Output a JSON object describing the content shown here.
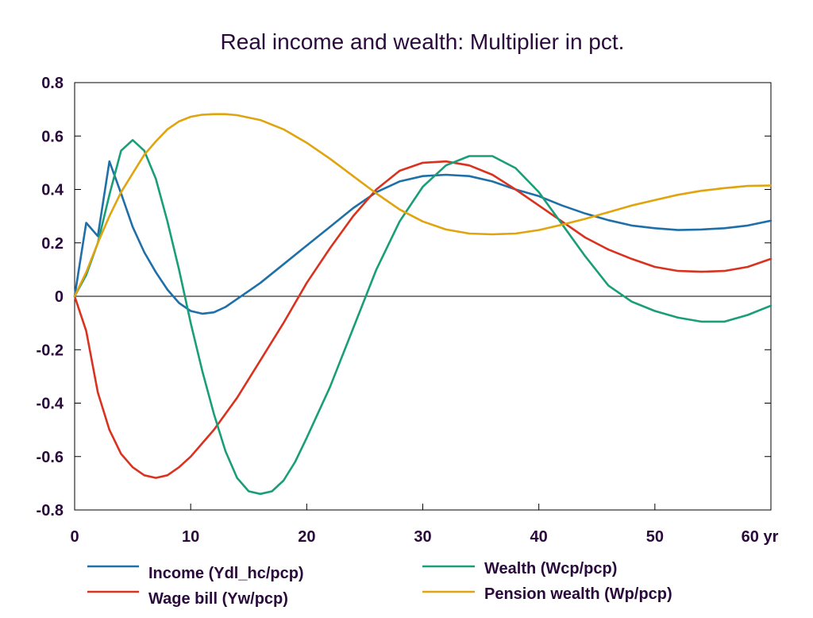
{
  "chart_data": {
    "type": "line",
    "title": "Real income and wealth: Multiplier in pct.",
    "x_unit_label": "yr",
    "xlim": [
      0,
      60
    ],
    "ylim": [
      -0.8,
      0.8
    ],
    "x_ticks": [
      0,
      10,
      20,
      30,
      40,
      50,
      60
    ],
    "x_tick_labels": [
      "0",
      "10",
      "20",
      "30",
      "40",
      "50",
      "60 yr"
    ],
    "y_ticks": [
      -0.8,
      -0.6,
      -0.4,
      -0.2,
      0,
      0.2,
      0.4,
      0.6,
      0.8
    ],
    "y_tick_labels": [
      "-0.8",
      "-0.6",
      "-0.4",
      "-0.2",
      "0",
      "0.2",
      "0.4",
      "0.6",
      "0.8"
    ],
    "zero_line": true,
    "grid": false,
    "legend_position": "bottom",
    "series": [
      {
        "name": "Income (Ydl_hc/pcp)",
        "color": "#1f6fa8",
        "x": [
          0,
          1,
          2,
          3,
          4,
          5,
          6,
          7,
          8,
          9,
          10,
          11,
          12,
          13,
          14,
          15,
          16,
          18,
          20,
          22,
          24,
          26,
          28,
          30,
          32,
          34,
          36,
          38,
          40,
          42,
          44,
          46,
          48,
          50,
          52,
          54,
          56,
          58,
          60
        ],
        "y": [
          0,
          0.275,
          0.225,
          0.505,
          0.385,
          0.26,
          0.165,
          0.09,
          0.025,
          -0.025,
          -0.055,
          -0.065,
          -0.06,
          -0.04,
          -0.01,
          0.02,
          0.05,
          0.12,
          0.19,
          0.26,
          0.33,
          0.39,
          0.43,
          0.45,
          0.455,
          0.45,
          0.43,
          0.4,
          0.375,
          0.34,
          0.31,
          0.285,
          0.265,
          0.255,
          0.248,
          0.25,
          0.255,
          0.265,
          0.283
        ]
      },
      {
        "name": "Wage bill (Yw/pcp)",
        "color": "#d9321f",
        "x": [
          0,
          1,
          2,
          3,
          4,
          5,
          6,
          7,
          8,
          9,
          10,
          12,
          14,
          16,
          18,
          20,
          22,
          24,
          26,
          28,
          30,
          32,
          34,
          36,
          38,
          40,
          42,
          44,
          46,
          48,
          50,
          52,
          54,
          56,
          58,
          60
        ],
        "y": [
          0,
          -0.13,
          -0.36,
          -0.5,
          -0.59,
          -0.64,
          -0.67,
          -0.68,
          -0.67,
          -0.64,
          -0.6,
          -0.5,
          -0.38,
          -0.24,
          -0.1,
          0.05,
          0.18,
          0.3,
          0.4,
          0.47,
          0.5,
          0.505,
          0.49,
          0.455,
          0.4,
          0.34,
          0.28,
          0.22,
          0.175,
          0.14,
          0.11,
          0.095,
          0.092,
          0.095,
          0.11,
          0.14
        ]
      },
      {
        "name": "Wealth (Wcp/pcp)",
        "color": "#1a9e78",
        "x": [
          0,
          1,
          2,
          3,
          4,
          5,
          6,
          7,
          8,
          9,
          10,
          11,
          12,
          13,
          14,
          15,
          16,
          17,
          18,
          19,
          20,
          22,
          24,
          26,
          28,
          30,
          32,
          34,
          36,
          38,
          40,
          42,
          44,
          46,
          48,
          50,
          52,
          54,
          56,
          58,
          60
        ],
        "y": [
          0,
          0.08,
          0.2,
          0.38,
          0.545,
          0.585,
          0.545,
          0.44,
          0.28,
          0.1,
          -0.1,
          -0.28,
          -0.44,
          -0.58,
          -0.68,
          -0.73,
          -0.74,
          -0.73,
          -0.69,
          -0.62,
          -0.53,
          -0.34,
          -0.12,
          0.1,
          0.28,
          0.41,
          0.49,
          0.525,
          0.525,
          0.48,
          0.39,
          0.27,
          0.15,
          0.04,
          -0.02,
          -0.055,
          -0.08,
          -0.095,
          -0.095,
          -0.07,
          -0.035
        ]
      },
      {
        "name": "Pension wealth (Wp/pcp)",
        "color": "#e0a40e",
        "x": [
          0,
          1,
          2,
          3,
          4,
          5,
          6,
          7,
          8,
          9,
          10,
          11,
          12,
          13,
          14,
          16,
          18,
          20,
          22,
          24,
          26,
          28,
          30,
          32,
          34,
          36,
          38,
          40,
          42,
          44,
          46,
          48,
          50,
          52,
          54,
          56,
          58,
          60
        ],
        "y": [
          0,
          0.09,
          0.2,
          0.3,
          0.39,
          0.46,
          0.53,
          0.58,
          0.625,
          0.655,
          0.672,
          0.68,
          0.682,
          0.682,
          0.678,
          0.66,
          0.625,
          0.575,
          0.515,
          0.45,
          0.385,
          0.325,
          0.28,
          0.25,
          0.235,
          0.232,
          0.235,
          0.248,
          0.268,
          0.29,
          0.315,
          0.34,
          0.36,
          0.38,
          0.395,
          0.405,
          0.413,
          0.415
        ]
      }
    ]
  }
}
